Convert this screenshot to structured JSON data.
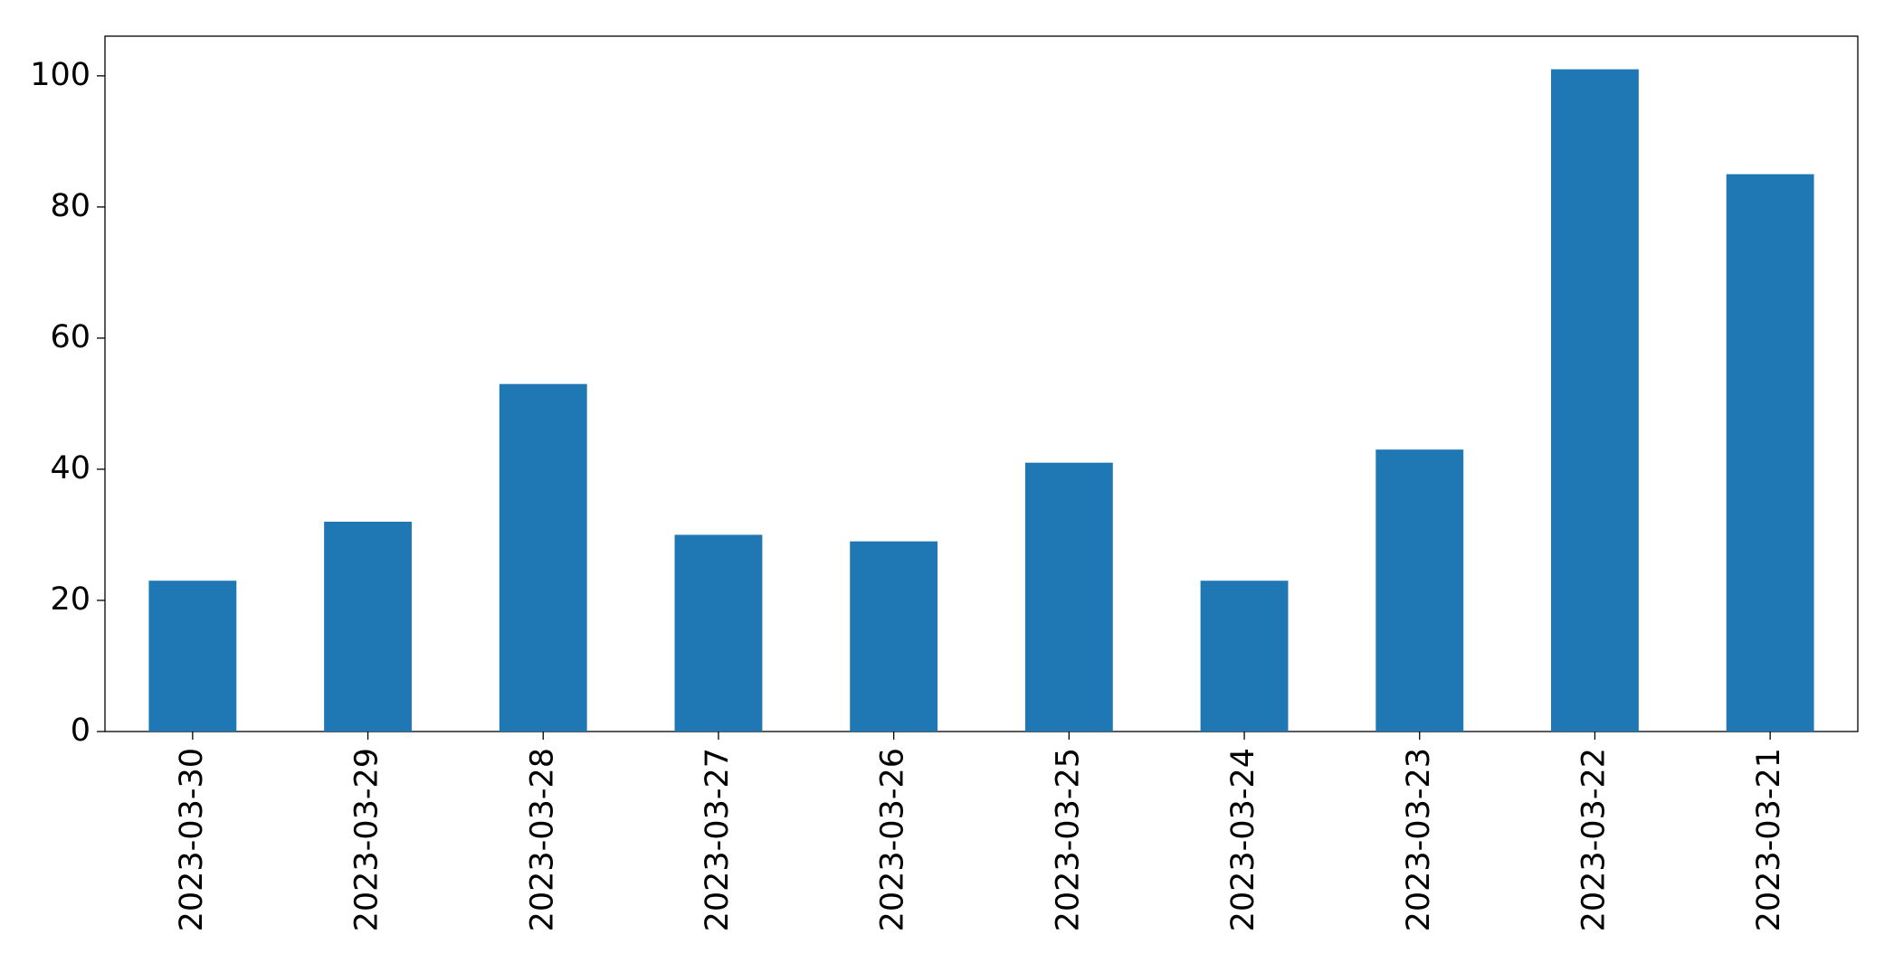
{
  "chart_data": {
    "type": "bar",
    "categories": [
      "2023-03-30",
      "2023-03-29",
      "2023-03-28",
      "2023-03-27",
      "2023-03-26",
      "2023-03-25",
      "2023-03-24",
      "2023-03-23",
      "2023-03-22",
      "2023-03-21"
    ],
    "values": [
      23,
      32,
      53,
      30,
      29,
      41,
      23,
      43,
      101,
      85
    ],
    "color": "#1f77b4",
    "ylim": [
      0,
      106.05
    ],
    "yticks": [
      0,
      20,
      40,
      60,
      80,
      100
    ],
    "grid": false
  }
}
